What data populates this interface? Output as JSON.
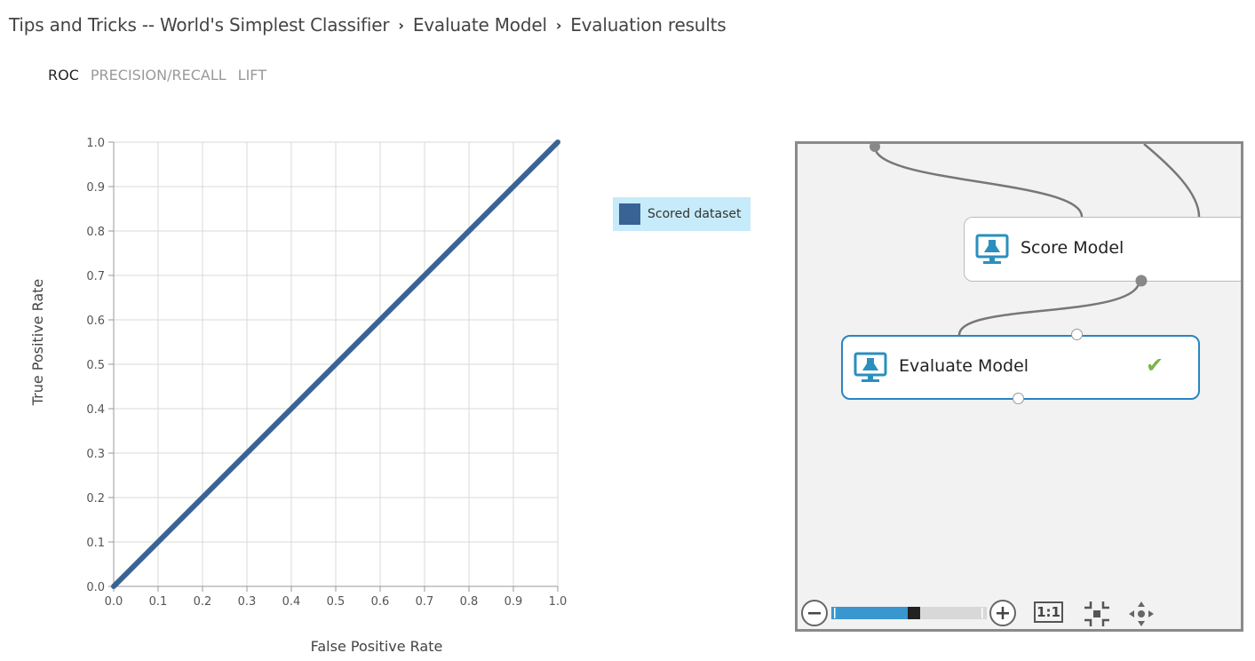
{
  "breadcrumb": {
    "items": [
      "Tips and Tricks -- World's Simplest Classifier",
      "Evaluate Model",
      "Evaluation results"
    ],
    "separator": "›"
  },
  "tabs": [
    {
      "label": "ROC",
      "active": true
    },
    {
      "label": "PRECISION/RECALL",
      "active": false
    },
    {
      "label": "LIFT",
      "active": false
    }
  ],
  "legend": {
    "label": "Scored dataset",
    "color": "#3a6395",
    "background": "#c6ebfa"
  },
  "chart_data": {
    "type": "line",
    "title": "",
    "xlabel": "False Positive Rate",
    "ylabel": "True Positive Rate",
    "xlim": [
      0,
      1
    ],
    "ylim": [
      0,
      1
    ],
    "xticks": [
      "0.0",
      "0.1",
      "0.2",
      "0.3",
      "0.4",
      "0.5",
      "0.6",
      "0.7",
      "0.8",
      "0.9",
      "1.0"
    ],
    "yticks": [
      "0.0",
      "0.1",
      "0.2",
      "0.3",
      "0.4",
      "0.5",
      "0.6",
      "0.7",
      "0.8",
      "0.9",
      "1.0"
    ],
    "grid": true,
    "legend_position": "right",
    "series": [
      {
        "name": "Scored dataset",
        "color": "#3a6395",
        "x": [
          0.0,
          1.0
        ],
        "y": [
          0.0,
          1.0
        ]
      }
    ]
  },
  "canvas": {
    "modules": {
      "score": {
        "label": "Score Model"
      },
      "evaluate": {
        "label": "Evaluate Model",
        "status": "✔",
        "status_color": "#7ab648"
      }
    },
    "zoom": {
      "level": 0.52,
      "zoom_out": "−",
      "zoom_in": "+",
      "actual_size": "1:1"
    },
    "colors": {
      "selected_border": "#2a85c2",
      "icon": "#2a8fbd"
    }
  }
}
